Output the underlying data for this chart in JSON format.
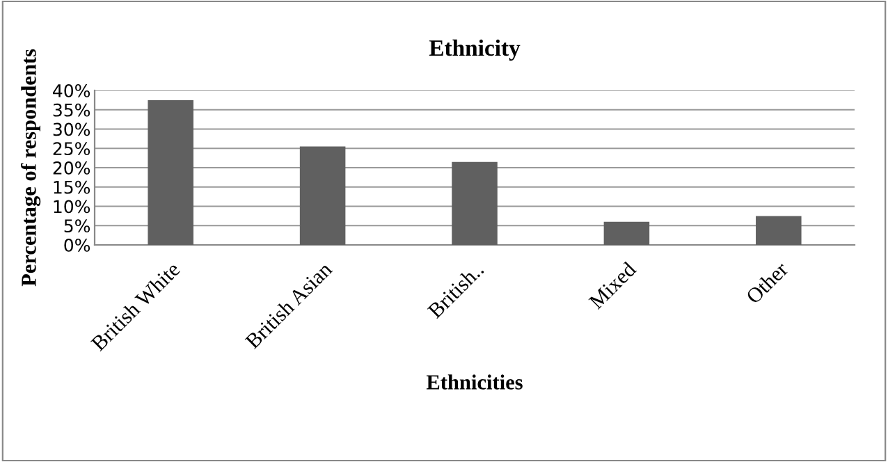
{
  "chart_data": {
    "type": "bar",
    "title": "Ethnicity",
    "xlabel": "Ethnicities",
    "ylabel": "Percentage of respondents",
    "categories": [
      "British White",
      "British Asian",
      "British..",
      "Mixed",
      "Other"
    ],
    "values": [
      37.5,
      25.5,
      21.5,
      6,
      7.5
    ],
    "color": "#606060",
    "ylim": [
      0,
      40
    ],
    "yticks": [
      {
        "value": 0,
        "label": "0%"
      },
      {
        "value": 5,
        "label": "5%"
      },
      {
        "value": 10,
        "label": "10%"
      },
      {
        "value": 15,
        "label": "15%"
      },
      {
        "value": 20,
        "label": "20%"
      },
      {
        "value": 25,
        "label": "25%"
      },
      {
        "value": 30,
        "label": "30%"
      },
      {
        "value": 35,
        "label": "35%"
      },
      {
        "value": 40,
        "label": "40%"
      }
    ],
    "grid": "y",
    "legend": false
  }
}
